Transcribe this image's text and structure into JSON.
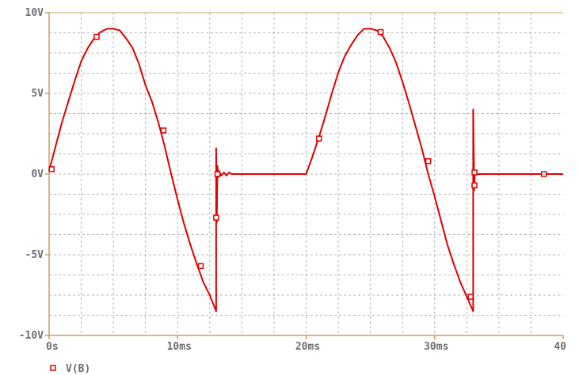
{
  "chart_data": {
    "type": "line",
    "title": "",
    "xlabel": "",
    "ylabel": "",
    "xlim": [
      0,
      40
    ],
    "ylim": [
      -10,
      10
    ],
    "grid": true,
    "x_ticks": [
      {
        "value": 0,
        "label": "0s"
      },
      {
        "value": 10,
        "label": "10ms"
      },
      {
        "value": 20,
        "label": "20ms"
      },
      {
        "value": 30,
        "label": "30ms"
      },
      {
        "value": 40,
        "label": "40"
      }
    ],
    "y_ticks": [
      {
        "value": 10,
        "label": "10V"
      },
      {
        "value": 5,
        "label": "5V"
      },
      {
        "value": 0,
        "label": "0V"
      },
      {
        "value": -5,
        "label": "-5V"
      },
      {
        "value": -10,
        "label": "-10V"
      }
    ],
    "legend": {
      "placement": "bottom-left",
      "entries": [
        {
          "label": "V(B)",
          "marker": "square"
        }
      ]
    },
    "colors": {
      "series": "#e00000",
      "axis": "#c8a060",
      "grid": "#b4b4b4",
      "text": "#6e6e6e"
    },
    "series": [
      {
        "name": "V(B)",
        "x": [
          0,
          0.5,
          1,
          1.5,
          2,
          2.5,
          3,
          3.5,
          4,
          4.5,
          5,
          5.5,
          6,
          6.5,
          7,
          7.5,
          8,
          8.5,
          9,
          9.5,
          10,
          10.5,
          11,
          11.5,
          12,
          12.5,
          13,
          13.0,
          13.05,
          13.1,
          13.15,
          13.2,
          13.4,
          13.6,
          13.8,
          14.0,
          14.2,
          14.5,
          15,
          17,
          19,
          20,
          20.5,
          21,
          21.5,
          22,
          22.5,
          23,
          23.5,
          24,
          24.5,
          25,
          25.5,
          26,
          26.5,
          27,
          27.5,
          28,
          28.5,
          29,
          29.5,
          30,
          30.5,
          31,
          31.5,
          32,
          32.5,
          33,
          33.0,
          33.08,
          33.12,
          33.2,
          33.4,
          33.8,
          35,
          38,
          40
        ],
        "y": [
          0.2,
          1.7,
          3.2,
          4.5,
          5.8,
          7.0,
          7.8,
          8.4,
          8.8,
          9.0,
          9.0,
          8.9,
          8.4,
          7.8,
          6.8,
          5.5,
          4.5,
          3.2,
          1.7,
          0.0,
          -1.6,
          -3.1,
          -4.4,
          -5.6,
          -6.7,
          -7.5,
          -8.5,
          1.6,
          -3.0,
          0.5,
          -0.2,
          0.2,
          -0.1,
          0.1,
          -0.1,
          0.1,
          0.0,
          0.0,
          0.0,
          0.0,
          0.0,
          0.0,
          1.1,
          2.3,
          3.6,
          5.0,
          6.3,
          7.3,
          8.0,
          8.6,
          9.0,
          9.0,
          8.9,
          8.5,
          7.8,
          6.9,
          5.7,
          4.4,
          3.0,
          1.6,
          0.0,
          -1.4,
          -2.9,
          -4.4,
          -5.6,
          -6.7,
          -7.6,
          -8.5,
          4.0,
          -1.0,
          0.0,
          0.0,
          0.0,
          0.0,
          0.0,
          0.0,
          0.0
        ],
        "markers": [
          {
            "x": 0.2,
            "y": 0.3
          },
          {
            "x": 3.7,
            "y": 8.5
          },
          {
            "x": 8.9,
            "y": 2.7
          },
          {
            "x": 11.8,
            "y": -5.7
          },
          {
            "x": 13.0,
            "y": -2.7
          },
          {
            "x": 13.1,
            "y": 0.0
          },
          {
            "x": 21.0,
            "y": 2.2
          },
          {
            "x": 25.8,
            "y": 8.8
          },
          {
            "x": 29.5,
            "y": 0.8
          },
          {
            "x": 32.8,
            "y": -7.6
          },
          {
            "x": 33.1,
            "y": -0.7
          },
          {
            "x": 33.1,
            "y": 0.1
          },
          {
            "x": 38.5,
            "y": 0.0
          }
        ]
      }
    ]
  }
}
